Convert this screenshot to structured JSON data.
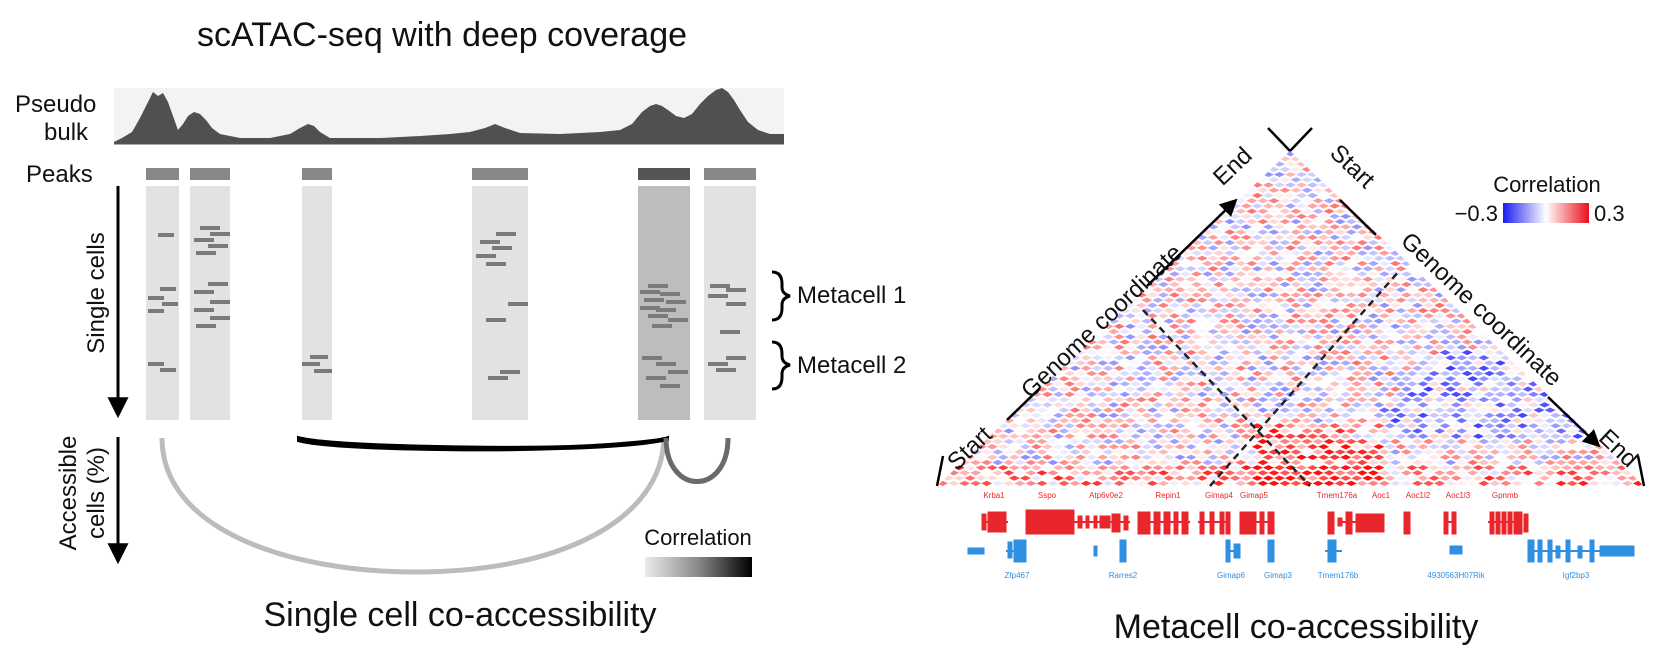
{
  "left_panel": {
    "title": "scATAC-seq with deep coverage",
    "pseudo_bulk_label_1": "Pseudo",
    "pseudo_bulk_label_2": "bulk",
    "peaks_label": "Peaks",
    "single_cells_label": "Single cells",
    "accessible_label_1": "Accessible",
    "accessible_label_2": "cells (%)",
    "metacell_1": "Metacell 1",
    "metacell_2": "Metacell 2",
    "correlation_label": "Correlation",
    "caption": "Single cell co-accessibility"
  },
  "right_panel": {
    "start_left": "Start",
    "end_top": "End",
    "start_top": "Start",
    "end_right": "End",
    "axis_left": "Genome coordinate",
    "axis_right": "Genome coordinate",
    "legend_title": "Correlation",
    "legend_min": "−0.3",
    "legend_max": "0.3",
    "caption": "Metacell co-accessibility",
    "genes_plus": [
      "Krba1",
      "Sspo",
      "Atp6v0e2",
      "Repin1",
      "Gimap4",
      "Gimap5",
      "Tmem176a",
      "Aoc1",
      "Aoc1l2",
      "Aoc1l3",
      "Gpnmb"
    ],
    "genes_minus": [
      "Zfp467",
      "Rarres2",
      "Gimap6",
      "Gimap3",
      "Tmem176b",
      "4930563H07Rik",
      "Igf2bp3"
    ]
  },
  "colors": {
    "positive": "#e8262c",
    "negative": "#2f8fe0",
    "heat_neg": "#2b2bf0",
    "heat_pos": "#e81010"
  }
}
